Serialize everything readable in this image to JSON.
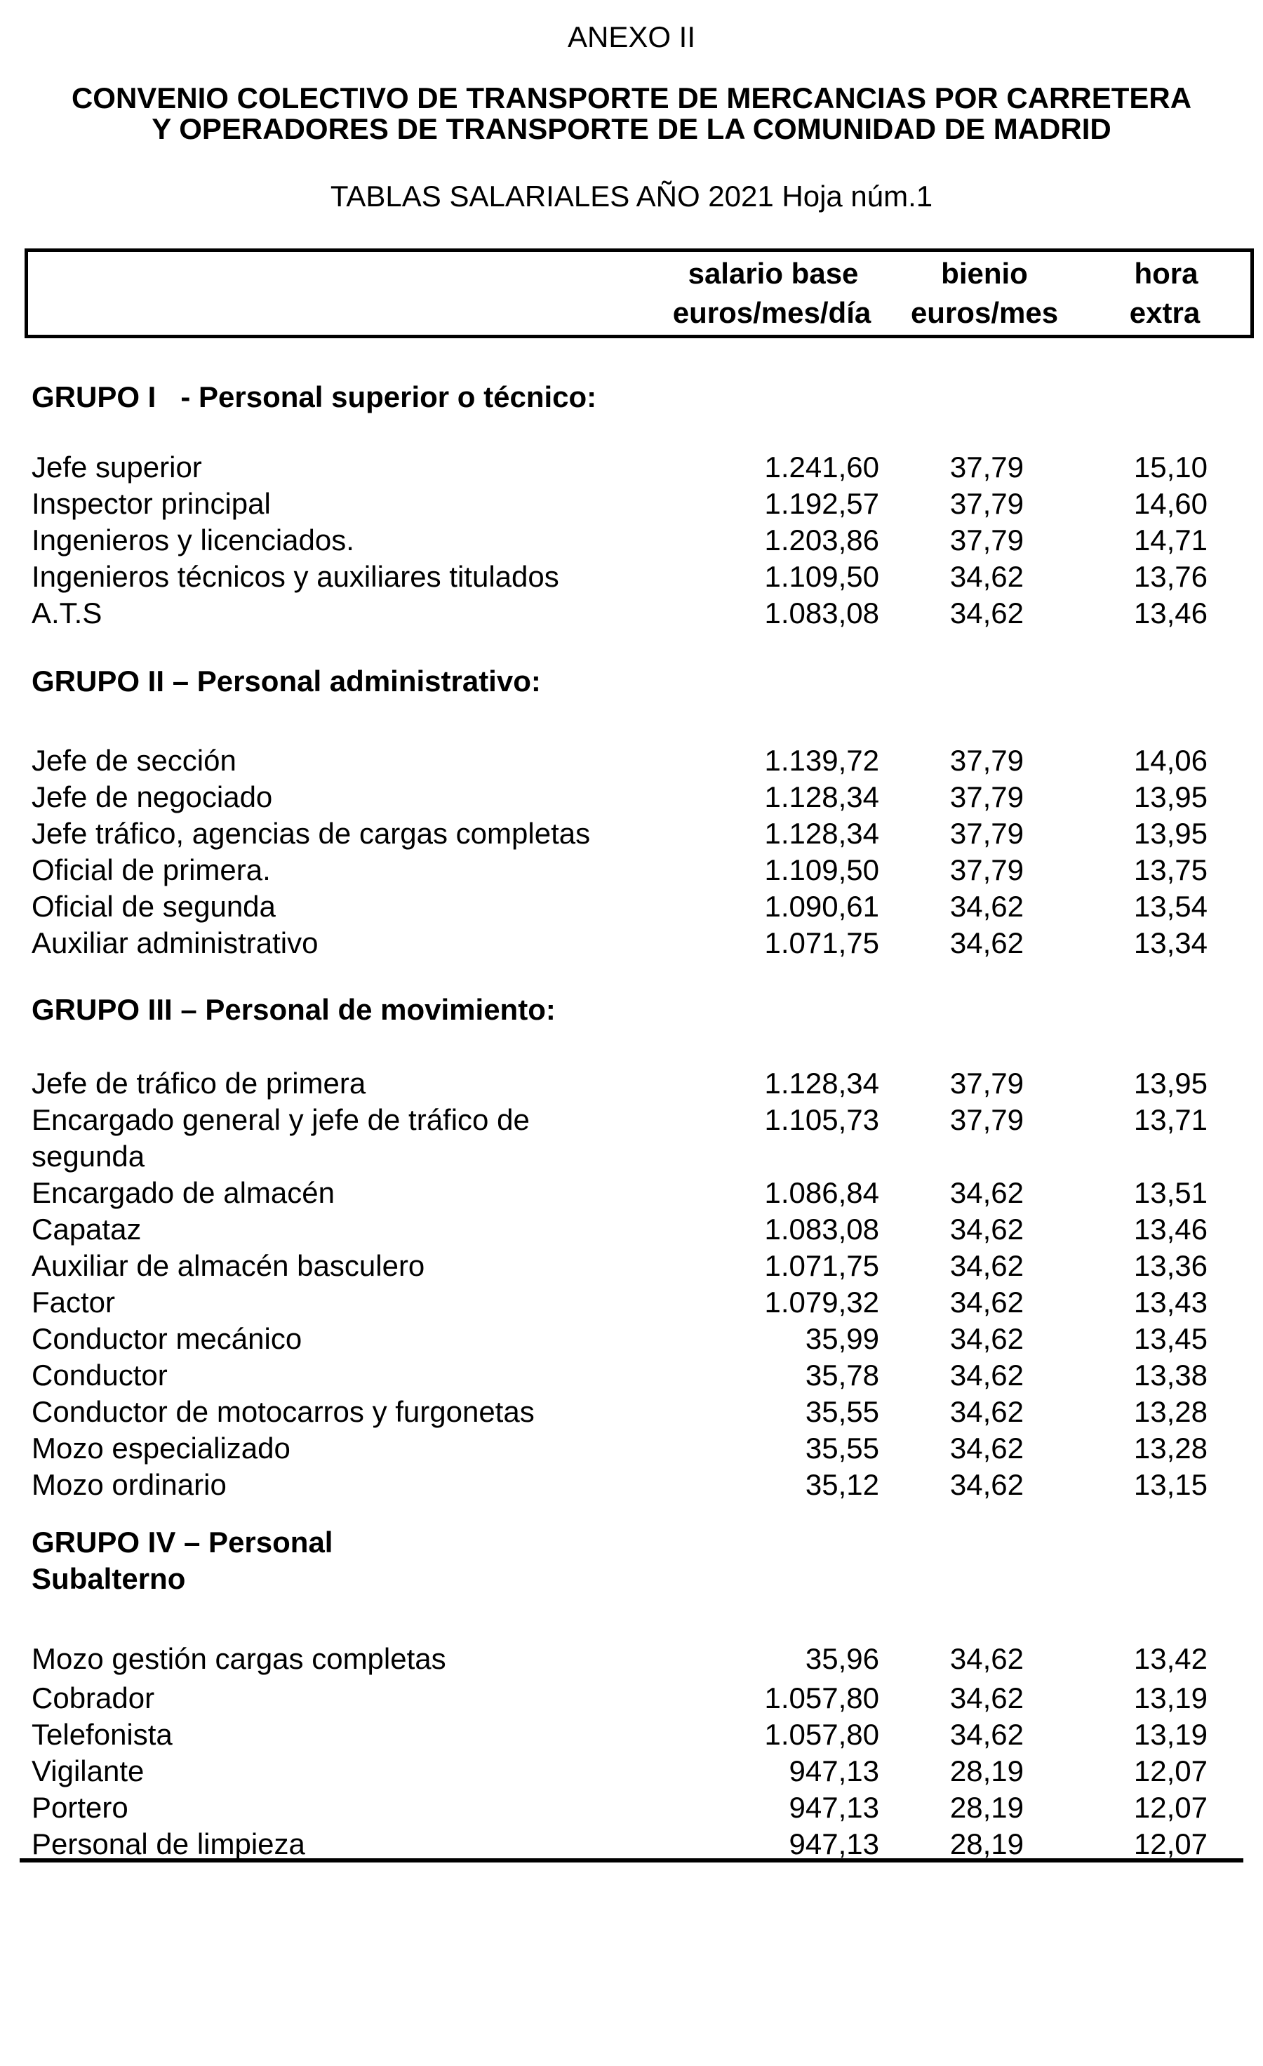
{
  "page": {
    "annex": "ANEXO II",
    "title_line1": "CONVENIO COLECTIVO DE TRANSPORTE DE MERCANCIAS POR CARRETERA",
    "title_line2": "Y OPERADORES DE TRANSPORTE DE LA COMUNIDAD DE MADRID",
    "subtitle": "TABLAS SALARIALES AÑO 2021 Hoja núm.1"
  },
  "table_header": {
    "salary": {
      "line1": "salario base",
      "line2": "euros/mes/día"
    },
    "biennium": {
      "line1": "bienio",
      "line2": "euros/mes"
    },
    "overtime": {
      "line1": "hora",
      "line2": "extra"
    }
  },
  "sections": [
    {
      "title": "GRUPO I   - Personal superior o técnico:",
      "rows": [
        {
          "label": "Jefe superior",
          "salario_base": "1.241,60",
          "bienio": "37,79",
          "hora_extra": "15,10"
        },
        {
          "label": "Inspector principal",
          "salario_base": "1.192,57",
          "bienio": "37,79",
          "hora_extra": "14,60"
        },
        {
          "label": "Ingenieros y licenciados.",
          "salario_base": "1.203,86",
          "bienio": "37,79",
          "hora_extra": "14,71"
        },
        {
          "label": "Ingenieros técnicos y auxiliares titulados",
          "salario_base": "1.109,50",
          "bienio": "34,62",
          "hora_extra": "13,76"
        },
        {
          "label": "A.T.S",
          "salario_base": "1.083,08",
          "bienio": "34,62",
          "hora_extra": "13,46"
        }
      ]
    },
    {
      "title": "GRUPO II – Personal administrativo:",
      "rows": [
        {
          "label": "Jefe de sección",
          "salario_base": "1.139,72",
          "bienio": "37,79",
          "hora_extra": "14,06"
        },
        {
          "label": "Jefe de negociado",
          "salario_base": "1.128,34",
          "bienio": "37,79",
          "hora_extra": "13,95"
        },
        {
          "label": "Jefe tráfico, agencias de cargas completas",
          "salario_base": "1.128,34",
          "bienio": "37,79",
          "hora_extra": "13,95"
        },
        {
          "label": "Oficial de primera.",
          "salario_base": "1.109,50",
          "bienio": "37,79",
          "hora_extra": "13,75"
        },
        {
          "label": "Oficial de segunda",
          "salario_base": "1.090,61",
          "bienio": "34,62",
          "hora_extra": "13,54"
        },
        {
          "label": "Auxiliar administrativo",
          "salario_base": "1.071,75",
          "bienio": "34,62",
          "hora_extra": "13,34"
        }
      ]
    },
    {
      "title": "GRUPO III – Personal de movimiento:",
      "rows": [
        {
          "label": "Jefe de tráfico de primera",
          "salario_base": "1.128,34",
          "bienio": "37,79",
          "hora_extra": "13,95"
        },
        {
          "label": "Encargado general y jefe de tráfico de\nsegunda",
          "salario_base": "1.105,73",
          "bienio": "37,79",
          "hora_extra": "13,71"
        },
        {
          "label": "Encargado de almacén",
          "salario_base": "1.086,84",
          "bienio": "34,62",
          "hora_extra": "13,51"
        },
        {
          "label": "Capataz",
          "salario_base": "1.083,08",
          "bienio": "34,62",
          "hora_extra": "13,46"
        },
        {
          "label": "Auxiliar de almacén basculero",
          "salario_base": "1.071,75",
          "bienio": "34,62",
          "hora_extra": "13,36"
        },
        {
          "label": "Factor",
          "salario_base": "1.079,32",
          "bienio": "34,62",
          "hora_extra": "13,43"
        },
        {
          "label": "Conductor mecánico",
          "salario_base": "35,99",
          "bienio": "34,62",
          "hora_extra": "13,45"
        },
        {
          "label": "Conductor",
          "salario_base": "35,78",
          "bienio": "34,62",
          "hora_extra": "13,38"
        },
        {
          "label": "Conductor de motocarros y furgonetas",
          "salario_base": "35,55",
          "bienio": "34,62",
          "hora_extra": "13,28"
        },
        {
          "label": "Mozo especializado",
          "salario_base": "35,55",
          "bienio": "34,62",
          "hora_extra": "13,28"
        },
        {
          "label": "Mozo ordinario",
          "salario_base": "35,12",
          "bienio": "34,62",
          "hora_extra": "13,15"
        }
      ]
    },
    {
      "title": "GRUPO IV – Personal\nSubalterno",
      "rows": [
        {
          "label": "Mozo gestión cargas completas",
          "salario_base": "35,96",
          "bienio": "34,62",
          "hora_extra": "13,42"
        },
        {
          "label": "Cobrador",
          "gap_before": true,
          "salario_base": "1.057,80",
          "bienio": "34,62",
          "hora_extra": "13,19"
        },
        {
          "label": "Telefonista",
          "salario_base": "1.057,80",
          "bienio": "34,62",
          "hora_extra": "13,19"
        },
        {
          "label": "Vigilante",
          "salario_base": "947,13",
          "bienio": "28,19",
          "hora_extra": "12,07"
        },
        {
          "label": "Portero",
          "salario_base": "947,13",
          "bienio": "28,19",
          "hora_extra": "12,07"
        },
        {
          "label": "Personal de limpieza",
          "salario_base": "947,13",
          "bienio": "28,19",
          "hora_extra": "12,07"
        }
      ]
    }
  ]
}
